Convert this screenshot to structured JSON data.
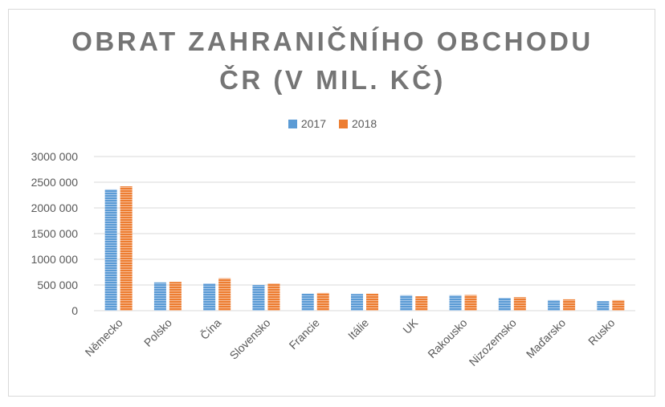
{
  "chart_data": {
    "type": "bar",
    "title_lines": [
      "OBRAT ZAHRANIČNÍHO OBCHODU",
      "ČR (V MIL. KČ)"
    ],
    "categories": [
      "Německo",
      "Polsko",
      "Čína",
      "Slovensko",
      "Francie",
      "Itálie",
      "UK",
      "Rakousko",
      "Nizozemsko",
      "Maďarsko",
      "Rusko"
    ],
    "series": [
      {
        "name": "2017",
        "color": "#5b9bd5",
        "values": [
          2360000,
          550000,
          530000,
          500000,
          330000,
          325000,
          300000,
          300000,
          250000,
          205000,
          185000
        ]
      },
      {
        "name": "2018",
        "color": "#ed7d31",
        "values": [
          2420000,
          560000,
          630000,
          530000,
          345000,
          330000,
          280000,
          305000,
          262000,
          220000,
          205000
        ]
      }
    ],
    "ylim": [
      0,
      3000000
    ],
    "yticks": [
      0,
      500000,
      1000000,
      1500000,
      2000000,
      2500000,
      3000000
    ],
    "ytick_labels": [
      "0",
      "500 000",
      "1000 000",
      "1500 000",
      "2000 000",
      "2500 000",
      "3000 000"
    ],
    "xlabel": "",
    "ylabel": "",
    "legend_position": "top",
    "grid": true
  }
}
